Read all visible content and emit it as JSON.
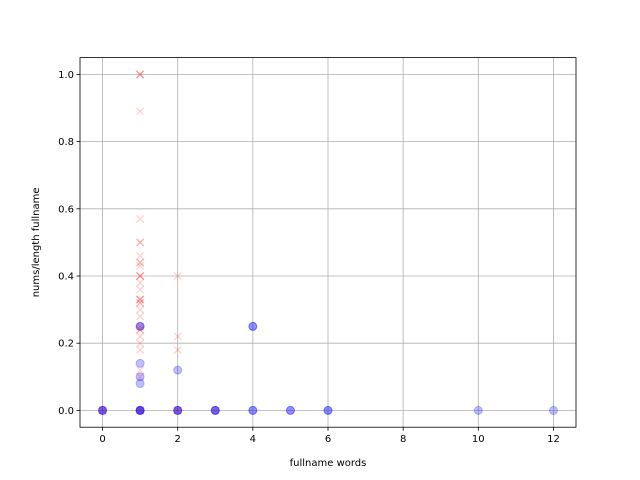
{
  "chart_data": {
    "type": "scatter",
    "xlabel": "fullname words",
    "ylabel": "nums/length fullname",
    "xlim": [
      -0.6,
      12.6
    ],
    "ylim": [
      -0.05,
      1.05
    ],
    "xticks": [
      0,
      2,
      4,
      6,
      8,
      10,
      12
    ],
    "xtick_labels": [
      "0",
      "2",
      "4",
      "6",
      "8",
      "10",
      "12"
    ],
    "yticks": [
      0.0,
      0.2,
      0.4,
      0.6,
      0.8,
      1.0
    ],
    "ytick_labels": [
      "0.0",
      "0.2",
      "0.4",
      "0.6",
      "0.8",
      "1.0"
    ],
    "grid": true,
    "series": [
      {
        "marker": "circle",
        "color": "#0000ff",
        "opacity": 0.25,
        "points": [
          {
            "x": 0,
            "y": 0
          },
          {
            "x": 0,
            "y": 0
          },
          {
            "x": 0,
            "y": 0
          },
          {
            "x": 1,
            "y": 0
          },
          {
            "x": 1,
            "y": 0
          },
          {
            "x": 1,
            "y": 0
          },
          {
            "x": 1,
            "y": 0
          },
          {
            "x": 1,
            "y": 0.08
          },
          {
            "x": 1,
            "y": 0.1
          },
          {
            "x": 1,
            "y": 0.14
          },
          {
            "x": 1,
            "y": 0.25
          },
          {
            "x": 1,
            "y": 0.25
          },
          {
            "x": 2,
            "y": 0
          },
          {
            "x": 2,
            "y": 0
          },
          {
            "x": 2,
            "y": 0
          },
          {
            "x": 2,
            "y": 0.12
          },
          {
            "x": 3,
            "y": 0
          },
          {
            "x": 3,
            "y": 0
          },
          {
            "x": 3,
            "y": 0
          },
          {
            "x": 4,
            "y": 0
          },
          {
            "x": 4,
            "y": 0
          },
          {
            "x": 4,
            "y": 0.25
          },
          {
            "x": 4,
            "y": 0.25
          },
          {
            "x": 5,
            "y": 0
          },
          {
            "x": 5,
            "y": 0
          },
          {
            "x": 6,
            "y": 0
          },
          {
            "x": 6,
            "y": 0
          },
          {
            "x": 10,
            "y": 0
          },
          {
            "x": 12,
            "y": 0
          }
        ]
      },
      {
        "marker": "x",
        "color": "#ff0000",
        "opacity": 0.18,
        "points": [
          {
            "x": 0,
            "y": 0
          },
          {
            "x": 0,
            "y": 0
          },
          {
            "x": 1,
            "y": 0
          },
          {
            "x": 1,
            "y": 0
          },
          {
            "x": 1,
            "y": 1.0
          },
          {
            "x": 1,
            "y": 1.0
          },
          {
            "x": 1,
            "y": 1.0
          },
          {
            "x": 1,
            "y": 0.89
          },
          {
            "x": 1,
            "y": 0.57
          },
          {
            "x": 1,
            "y": 0.5
          },
          {
            "x": 1,
            "y": 0.5
          },
          {
            "x": 1,
            "y": 0.46
          },
          {
            "x": 1,
            "y": 0.44
          },
          {
            "x": 1,
            "y": 0.44
          },
          {
            "x": 1,
            "y": 0.43
          },
          {
            "x": 1,
            "y": 0.4
          },
          {
            "x": 1,
            "y": 0.4
          },
          {
            "x": 1,
            "y": 0.4
          },
          {
            "x": 1,
            "y": 0.38
          },
          {
            "x": 1,
            "y": 0.36
          },
          {
            "x": 1,
            "y": 0.33
          },
          {
            "x": 1,
            "y": 0.33
          },
          {
            "x": 1,
            "y": 0.33
          },
          {
            "x": 1,
            "y": 0.32
          },
          {
            "x": 1,
            "y": 0.32
          },
          {
            "x": 1,
            "y": 0.3
          },
          {
            "x": 1,
            "y": 0.28
          },
          {
            "x": 1,
            "y": 0.25
          },
          {
            "x": 1,
            "y": 0.24
          },
          {
            "x": 1,
            "y": 0.24
          },
          {
            "x": 1,
            "y": 0.22
          },
          {
            "x": 1,
            "y": 0.2
          },
          {
            "x": 1,
            "y": 0.18
          },
          {
            "x": 1,
            "y": 0.12
          },
          {
            "x": 1,
            "y": 0.1
          },
          {
            "x": 2,
            "y": 0
          },
          {
            "x": 2,
            "y": 0
          },
          {
            "x": 2,
            "y": 0.4
          },
          {
            "x": 2,
            "y": 0.22
          },
          {
            "x": 2,
            "y": 0.18
          },
          {
            "x": 3,
            "y": 0
          }
        ]
      }
    ]
  }
}
